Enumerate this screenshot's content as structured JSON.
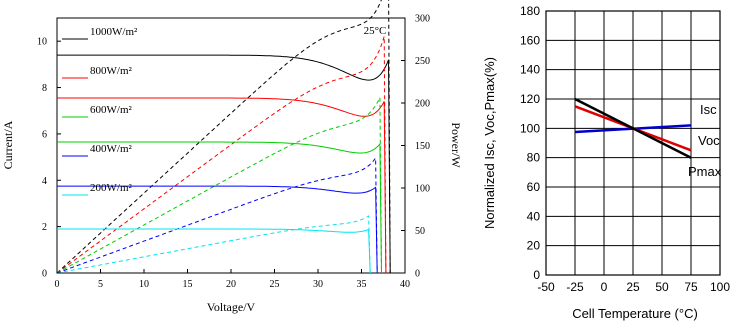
{
  "chart_data": [
    {
      "type": "line",
      "title": "",
      "annotation": "25°C",
      "xlabel": "Voltage/V",
      "ylabel": "Current/A",
      "y2label": "Power/W",
      "xlim": [
        0,
        40
      ],
      "ylim": [
        0,
        11
      ],
      "y2lim": [
        0,
        300
      ],
      "xticks": [
        "0",
        "5",
        "10",
        "15",
        "20",
        "25",
        "30",
        "35",
        "40"
      ],
      "yticks": [
        "0",
        "2",
        "4",
        "6",
        "8",
        "10"
      ],
      "y2ticks": [
        "0",
        "50",
        "100",
        "150",
        "200",
        "250",
        "300"
      ],
      "grid": false,
      "legend": "top-left",
      "series": [
        {
          "name": "1000W/m²",
          "irradiance": 1000,
          "color": "#000000",
          "isc": 9.4,
          "voc": 38.3,
          "vmp": 32.0,
          "pmax": 283
        },
        {
          "name": "800W/m²",
          "irradiance": 800,
          "color": "#ff0000",
          "isc": 7.55,
          "voc": 37.8,
          "vmp": 32.0,
          "pmax": 227
        },
        {
          "name": "600W/m²",
          "irradiance": 600,
          "color": "#00cc00",
          "isc": 5.65,
          "voc": 37.3,
          "vmp": 32.0,
          "pmax": 171
        },
        {
          "name": "400W/m²",
          "irradiance": 400,
          "color": "#0000ff",
          "isc": 3.75,
          "voc": 36.8,
          "vmp": 32.0,
          "pmax": 113
        },
        {
          "name": "200W/m²",
          "irradiance": 200,
          "color": "#00e5ee",
          "isc": 1.9,
          "voc": 36.0,
          "vmp": 32.0,
          "pmax": 57
        }
      ]
    },
    {
      "type": "line",
      "title": "",
      "xlabel": "Cell Temperature (°C)",
      "ylabel": "Normalized Isc, Voc,Pmax(%)",
      "xlim": [
        -50,
        100
      ],
      "ylim": [
        0,
        180
      ],
      "xticks": [
        "-50",
        "-25",
        "0",
        "25",
        "50",
        "75",
        "100"
      ],
      "yticks": [
        "0",
        "20",
        "40",
        "60",
        "80",
        "100",
        "120",
        "140",
        "160",
        "180"
      ],
      "grid": true,
      "series": [
        {
          "name": "Isc",
          "color": "#0000cc",
          "x": [
            -25,
            75
          ],
          "values": [
            97.5,
            102
          ]
        },
        {
          "name": "Voc",
          "color": "#dd0000",
          "x": [
            -25,
            75
          ],
          "values": [
            115,
            85
          ]
        },
        {
          "name": "Pmax",
          "color": "#000000",
          "x": [
            -25,
            75
          ],
          "values": [
            120,
            80
          ]
        }
      ]
    }
  ]
}
